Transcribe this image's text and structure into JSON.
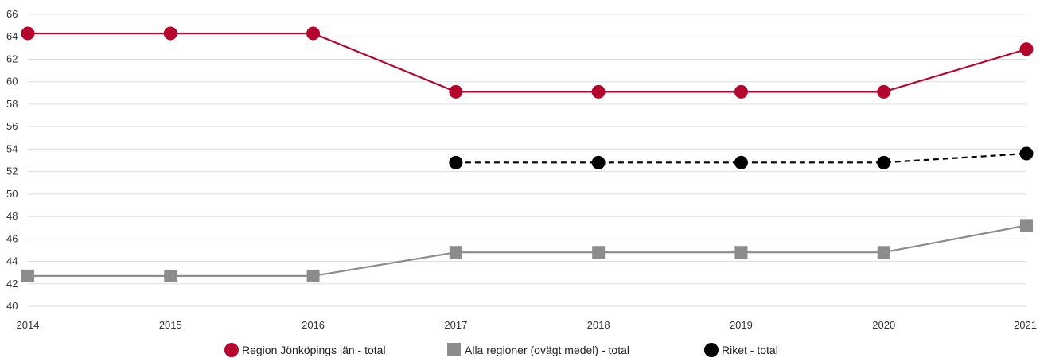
{
  "chart_data": {
    "type": "line",
    "x": [
      2014,
      2015,
      2016,
      2017,
      2018,
      2019,
      2020,
      2021
    ],
    "xlabel": "",
    "ylabel": "",
    "ylim": [
      40,
      66
    ],
    "yticks": [
      40,
      42,
      44,
      46,
      48,
      50,
      52,
      54,
      56,
      58,
      60,
      62,
      64,
      66
    ],
    "grid": true,
    "legend_position": "bottom-center",
    "series": [
      {
        "name": "Region Jönköpings län - total",
        "color": "#b5072e",
        "marker": "circle",
        "line_style": "solid",
        "values": [
          64.3,
          64.3,
          64.3,
          59.1,
          59.1,
          59.1,
          59.1,
          62.9
        ]
      },
      {
        "name": "Alla regioner (ovägt medel) - total",
        "color": "#8c8c8c",
        "marker": "square",
        "line_style": "solid",
        "values": [
          42.7,
          42.7,
          42.7,
          44.8,
          44.8,
          44.8,
          44.8,
          47.2
        ]
      },
      {
        "name": "Riket - total",
        "color": "#000000",
        "marker": "circle",
        "line_style": "dashed",
        "values": [
          null,
          null,
          null,
          52.8,
          52.8,
          52.8,
          52.8,
          53.6
        ]
      }
    ]
  }
}
